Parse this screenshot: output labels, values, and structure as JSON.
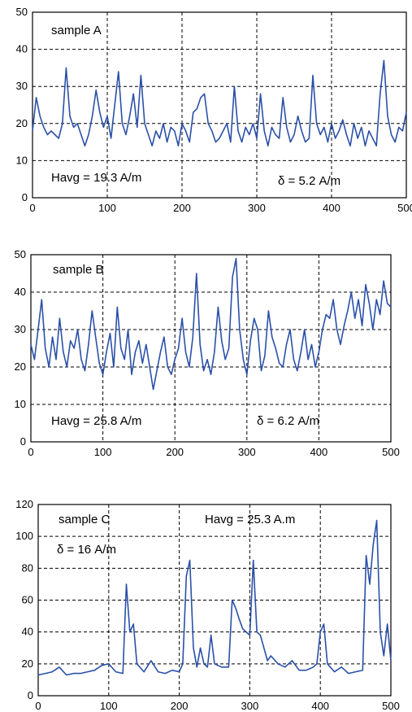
{
  "chart_data": [
    {
      "type": "line",
      "xlim": [
        0,
        500
      ],
      "ylim": [
        0,
        50
      ],
      "xticks": [
        0,
        100,
        200,
        300,
        400,
        500
      ],
      "yticks": [
        0,
        10,
        20,
        30,
        40,
        50
      ],
      "grid": true,
      "line_color": "#2b50a8",
      "annotations": [
        "sample A",
        "Havg = 19.3 A/m",
        "δ = 5.2 A/m"
      ],
      "series": [
        {
          "x": [
            0,
            5,
            10,
            15,
            20,
            25,
            30,
            35,
            40,
            45,
            50,
            55,
            60,
            65,
            70,
            75,
            80,
            85,
            90,
            95,
            100,
            105,
            110,
            115,
            120,
            125,
            130,
            135,
            140,
            145,
            150,
            155,
            160,
            165,
            170,
            175,
            180,
            185,
            190,
            195,
            200,
            205,
            210,
            215,
            220,
            225,
            230,
            235,
            240,
            245,
            250,
            255,
            260,
            265,
            270,
            275,
            280,
            285,
            290,
            295,
            300,
            305,
            310,
            315,
            320,
            325,
            330,
            335,
            340,
            345,
            350,
            355,
            360,
            365,
            370,
            375,
            380,
            385,
            390,
            395,
            400,
            405,
            410,
            415,
            420,
            425,
            430,
            435,
            440,
            445,
            450,
            455,
            460,
            465,
            470,
            475,
            480,
            485,
            490,
            495,
            500
          ],
          "y": [
            18,
            27,
            22,
            19,
            17,
            18,
            17,
            16,
            20,
            35,
            22,
            19,
            20,
            17,
            14,
            17,
            22,
            29,
            23,
            19,
            22,
            16,
            25,
            34,
            20,
            17,
            22,
            28,
            19,
            33,
            20,
            17,
            14,
            18,
            16,
            20,
            15,
            19,
            18,
            14,
            20,
            18,
            15,
            23,
            24,
            27,
            28,
            20,
            18,
            15,
            16,
            18,
            20,
            15,
            30,
            18,
            15,
            19,
            17,
            20,
            16,
            28,
            18,
            14,
            19,
            17,
            16,
            27,
            19,
            15,
            17,
            22,
            18,
            15,
            16,
            33,
            20,
            17,
            19,
            15,
            20,
            16,
            18,
            21,
            17,
            14,
            20,
            16,
            19,
            14,
            18,
            16,
            14,
            28,
            37,
            22,
            17,
            15,
            19,
            18,
            23
          ]
        }
      ]
    },
    {
      "type": "line",
      "xlim": [
        0,
        500
      ],
      "ylim": [
        0,
        50
      ],
      "xticks": [
        0,
        100,
        200,
        300,
        400,
        500
      ],
      "yticks": [
        0,
        10,
        20,
        30,
        40,
        50
      ],
      "grid": true,
      "line_color": "#2b50a8",
      "annotations": [
        "sample B",
        "Havg = 25.8 A/m",
        "δ = 6.2 A/m"
      ],
      "series": [
        {
          "x": [
            0,
            5,
            10,
            15,
            20,
            25,
            30,
            35,
            40,
            45,
            50,
            55,
            60,
            65,
            70,
            75,
            80,
            85,
            90,
            95,
            100,
            105,
            110,
            115,
            120,
            125,
            130,
            135,
            140,
            145,
            150,
            155,
            160,
            165,
            170,
            175,
            180,
            185,
            190,
            195,
            200,
            205,
            210,
            215,
            220,
            225,
            230,
            235,
            240,
            245,
            250,
            255,
            260,
            265,
            270,
            275,
            280,
            285,
            290,
            295,
            300,
            305,
            310,
            315,
            320,
            325,
            330,
            335,
            340,
            345,
            350,
            355,
            360,
            365,
            370,
            375,
            380,
            385,
            390,
            395,
            400,
            405,
            410,
            415,
            420,
            425,
            430,
            435,
            440,
            445,
            450,
            455,
            460,
            465,
            470,
            475,
            480,
            485,
            490,
            495,
            500
          ],
          "y": [
            26,
            22,
            30,
            38,
            25,
            20,
            28,
            22,
            33,
            24,
            20,
            27,
            25,
            30,
            22,
            19,
            26,
            35,
            28,
            21,
            18,
            24,
            29,
            20,
            36,
            25,
            22,
            30,
            18,
            24,
            27,
            21,
            26,
            20,
            14,
            19,
            24,
            28,
            20,
            18,
            22,
            25,
            33,
            24,
            20,
            28,
            45,
            26,
            19,
            22,
            18,
            24,
            36,
            27,
            22,
            25,
            44,
            49,
            30,
            22,
            18,
            27,
            33,
            30,
            19,
            23,
            35,
            28,
            25,
            21,
            20,
            26,
            30,
            22,
            19,
            24,
            30,
            22,
            26,
            20,
            24,
            30,
            34,
            33,
            38,
            30,
            26,
            31,
            35,
            40,
            33,
            38,
            31,
            42,
            37,
            30,
            38,
            34,
            43,
            37,
            36
          ]
        }
      ]
    },
    {
      "type": "line",
      "xlim": [
        0,
        500
      ],
      "ylim": [
        0,
        120
      ],
      "xticks": [
        0,
        100,
        200,
        300,
        400,
        500
      ],
      "yticks": [
        0,
        20,
        40,
        60,
        80,
        100,
        120
      ],
      "grid": true,
      "line_color": "#2b50a8",
      "annotations": [
        "sample C",
        "δ = 16 A/m",
        "Havg = 25.3 A.m"
      ],
      "series": [
        {
          "x": [
            0,
            10,
            20,
            30,
            40,
            50,
            60,
            70,
            80,
            90,
            100,
            110,
            120,
            125,
            130,
            135,
            140,
            150,
            160,
            170,
            180,
            190,
            200,
            205,
            210,
            215,
            220,
            225,
            230,
            235,
            240,
            245,
            250,
            260,
            270,
            275,
            280,
            285,
            290,
            300,
            305,
            310,
            315,
            320,
            325,
            330,
            340,
            350,
            360,
            370,
            380,
            390,
            395,
            400,
            405,
            410,
            420,
            430,
            440,
            450,
            460,
            465,
            470,
            475,
            480,
            485,
            490,
            495,
            500
          ],
          "y": [
            13,
            14,
            15,
            18,
            13,
            14,
            14,
            15,
            16,
            19,
            20,
            15,
            14,
            70,
            40,
            45,
            20,
            15,
            22,
            15,
            14,
            16,
            15,
            20,
            75,
            85,
            30,
            18,
            30,
            20,
            18,
            38,
            20,
            18,
            18,
            60,
            55,
            48,
            42,
            38,
            85,
            40,
            38,
            30,
            22,
            25,
            20,
            18,
            22,
            16,
            16,
            18,
            20,
            40,
            45,
            20,
            15,
            18,
            14,
            15,
            16,
            88,
            70,
            95,
            110,
            40,
            25,
            45,
            22
          ]
        }
      ]
    }
  ]
}
